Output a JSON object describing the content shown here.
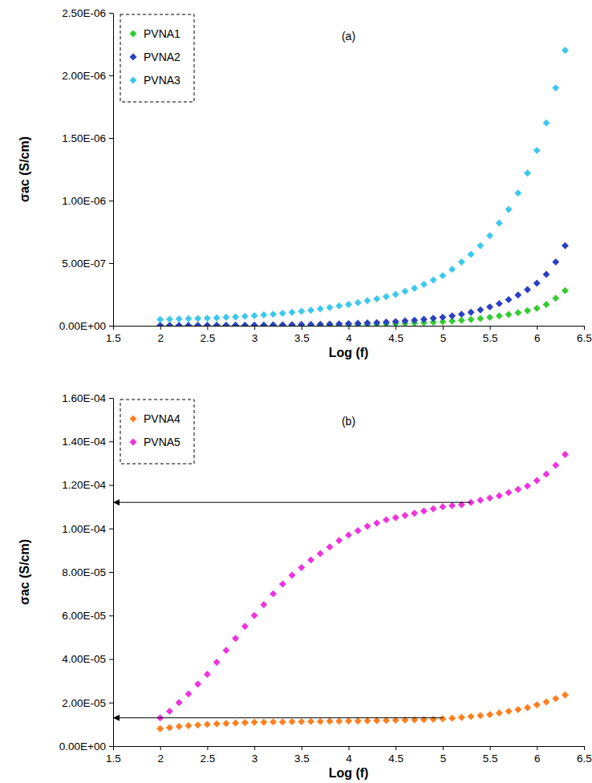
{
  "chart_data": [
    {
      "type": "scatter",
      "title": "(a)",
      "xlabel": "Log (f)",
      "ylabel": "σac (S/cm)",
      "legend": "upper left",
      "marker": "diamond",
      "grid": false,
      "xlim": [
        1.5,
        6.5
      ],
      "xticks": [
        1.5,
        2,
        2.5,
        3,
        3.5,
        4,
        4.5,
        5,
        5.5,
        6,
        6.5
      ],
      "ylim": [
        0,
        2.5e-06
      ],
      "yticks": [
        {
          "value": 0,
          "label": "0.00E+00"
        },
        {
          "value": 5e-07,
          "label": "5.00E-07"
        },
        {
          "value": 1e-06,
          "label": "1.00E-06"
        },
        {
          "value": 1.5e-06,
          "label": "1.50E-06"
        },
        {
          "value": 2e-06,
          "label": "2.00E-06"
        },
        {
          "value": 2.5e-06,
          "label": "2.50E-06"
        }
      ],
      "x": [
        2,
        2.1,
        2.2,
        2.3,
        2.4,
        2.5,
        2.6,
        2.7,
        2.8,
        2.9,
        3,
        3.1,
        3.2,
        3.3,
        3.4,
        3.5,
        3.6,
        3.7,
        3.8,
        3.9,
        4,
        4.1,
        4.2,
        4.3,
        4.4,
        4.5,
        4.6,
        4.7,
        4.8,
        4.9,
        5,
        5.1,
        5.2,
        5.3,
        5.4,
        5.5,
        5.6,
        5.7,
        5.8,
        5.9,
        6,
        6.1,
        6.2,
        6.3
      ],
      "series": [
        {
          "name": "PVNA1",
          "color": "#33cc33",
          "values": [
            1e-09,
            1e-09,
            1e-09,
            1e-09,
            1e-09,
            1e-09,
            2e-09,
            2e-09,
            2e-09,
            2e-09,
            2e-09,
            2e-09,
            2e-09,
            3e-09,
            3e-09,
            4e-09,
            4e-09,
            5e-09,
            6e-09,
            7e-09,
            8e-09,
            9e-09,
            1e-08,
            1.2e-08,
            1.4e-08,
            1.6e-08,
            1.8e-08,
            2.1e-08,
            2.4e-08,
            2.8e-08,
            3.2e-08,
            3.7e-08,
            4.3e-08,
            5e-08,
            5.8e-08,
            6.7e-08,
            7.8e-08,
            9e-08,
            1.04e-07,
            1.2e-07,
            1.4e-07,
            1.7e-07,
            2.2e-07,
            2.8e-07
          ]
        },
        {
          "name": "PVNA2",
          "color": "#2b3fc4",
          "values": [
            2e-09,
            2e-09,
            2e-09,
            2e-09,
            3e-09,
            3e-09,
            3e-09,
            3e-09,
            4e-09,
            4e-09,
            5e-09,
            5e-09,
            6e-09,
            7e-09,
            8e-09,
            9e-09,
            1e-08,
            1.1e-08,
            1.3e-08,
            1.5e-08,
            1.7e-08,
            1.9e-08,
            2.2e-08,
            2.5e-08,
            2.9e-08,
            3.3e-08,
            3.8e-08,
            4.4e-08,
            5.1e-08,
            5.9e-08,
            6.8e-08,
            7.9e-08,
            9.2e-08,
            1.08e-07,
            1.27e-07,
            1.5e-07,
            1.77e-07,
            2.08e-07,
            2.45e-07,
            2.88e-07,
            3.4e-07,
            4.1e-07,
            5.1e-07,
            6.4e-07
          ]
        },
        {
          "name": "PVNA3",
          "color": "#3cc8ec",
          "values": [
            5e-08,
            5.2e-08,
            5.4e-08,
            5.6e-08,
            5.8e-08,
            6e-08,
            6.3e-08,
            6.7e-08,
            7.1e-08,
            7.5e-08,
            8e-08,
            8.6e-08,
            9.2e-08,
            9.9e-08,
            1.07e-07,
            1.15e-07,
            1.24e-07,
            1.35e-07,
            1.46e-07,
            1.58e-07,
            1.7e-07,
            1.84e-07,
            2e-07,
            2.15e-07,
            2.32e-07,
            2.5e-07,
            2.75e-07,
            3e-07,
            3.3e-07,
            3.65e-07,
            4e-07,
            4.5e-07,
            5.1e-07,
            5.7e-07,
            6.4e-07,
            7.2e-07,
            8.2e-07,
            9.3e-07,
            1.06e-06,
            1.22e-06,
            1.4e-06,
            1.62e-06,
            1.9e-06,
            2.2e-06
          ]
        }
      ]
    },
    {
      "type": "scatter",
      "title": "(b)",
      "xlabel": "Log (f)",
      "ylabel": "σac (S/cm)",
      "legend": "upper left",
      "marker": "diamond",
      "grid": false,
      "xlim": [
        1.5,
        6.5
      ],
      "xticks": [
        1.5,
        2,
        2.5,
        3,
        3.5,
        4,
        4.5,
        5,
        5.5,
        6,
        6.5
      ],
      "ylim": [
        0,
        0.00016
      ],
      "yticks": [
        {
          "value": 0,
          "label": "0.00E+00"
        },
        {
          "value": 2e-05,
          "label": "2.00E-05"
        },
        {
          "value": 4e-05,
          "label": "4.00E-05"
        },
        {
          "value": 6e-05,
          "label": "6.00E-05"
        },
        {
          "value": 8e-05,
          "label": "8.00E-05"
        },
        {
          "value": 0.0001,
          "label": "1.00E-04"
        },
        {
          "value": 0.00012,
          "label": "1.20E-04"
        },
        {
          "value": 0.00014,
          "label": "1.40E-04"
        },
        {
          "value": 0.00016,
          "label": "1.60E-04"
        }
      ],
      "x": [
        2,
        2.1,
        2.2,
        2.3,
        2.4,
        2.5,
        2.6,
        2.7,
        2.8,
        2.9,
        3,
        3.1,
        3.2,
        3.3,
        3.4,
        3.5,
        3.6,
        3.7,
        3.8,
        3.9,
        4,
        4.1,
        4.2,
        4.3,
        4.4,
        4.5,
        4.6,
        4.7,
        4.8,
        4.9,
        5,
        5.1,
        5.2,
        5.3,
        5.4,
        5.5,
        5.6,
        5.7,
        5.8,
        5.9,
        6,
        6.1,
        6.2,
        6.3
      ],
      "series": [
        {
          "name": "PVNA4",
          "color": "#ff7f1e",
          "values": [
            8e-06,
            8.5e-06,
            9e-06,
            9.4e-06,
            9.7e-06,
            1e-05,
            1.02e-05,
            1.04e-05,
            1.06e-05,
            1.08e-05,
            1.1e-05,
            1.1e-05,
            1.11e-05,
            1.11e-05,
            1.12e-05,
            1.12e-05,
            1.13e-05,
            1.13e-05,
            1.14e-05,
            1.14e-05,
            1.15e-05,
            1.15e-05,
            1.16e-05,
            1.17e-05,
            1.18e-05,
            1.19e-05,
            1.2e-05,
            1.21e-05,
            1.22e-05,
            1.23e-05,
            1.25e-05,
            1.28e-05,
            1.32e-05,
            1.36e-05,
            1.4e-05,
            1.45e-05,
            1.52e-05,
            1.6e-05,
            1.68e-05,
            1.77e-05,
            1.9e-05,
            2.03e-05,
            2.18e-05,
            2.35e-05
          ]
        },
        {
          "name": "PVNA5",
          "color": "#ee33dd",
          "values": [
            1.3e-05,
            1.6e-05,
            2e-05,
            2.4e-05,
            2.85e-05,
            3.3e-05,
            3.85e-05,
            4.4e-05,
            4.95e-05,
            5.5e-05,
            6e-05,
            6.5e-05,
            7e-05,
            7.45e-05,
            7.85e-05,
            8.2e-05,
            8.55e-05,
            8.85e-05,
            9.15e-05,
            9.45e-05,
            9.7e-05,
            9.9e-05,
            0.000101,
            0.0001025,
            0.000104,
            0.000105,
            0.000106,
            0.000107,
            0.000108,
            0.000109,
            0.00011,
            0.0001105,
            0.000111,
            0.000112,
            0.000113,
            0.000114,
            0.000115,
            0.0001165,
            0.000118,
            0.0001195,
            0.000122,
            0.000125,
            0.000129,
            0.000134
          ]
        }
      ],
      "arrows": [
        {
          "from": [
            5.3,
            0.000112
          ],
          "to": [
            1.5,
            0.000112
          ]
        },
        {
          "from": [
            5.0,
            1.3e-05
          ],
          "to": [
            1.5,
            1.3e-05
          ]
        }
      ]
    }
  ]
}
